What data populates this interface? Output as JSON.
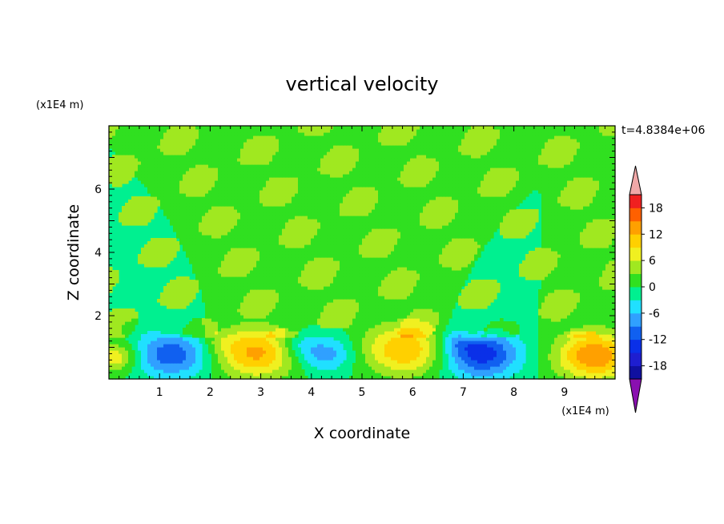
{
  "chart_data": {
    "type": "heatmap",
    "title": "vertical velocity",
    "xlabel": "X coordinate",
    "ylabel": "Z coordinate",
    "x_unit": "(x1E4 m)",
    "y_unit": "(x1E4 m)",
    "time_label": "t=4.8384e+06",
    "xlim": [
      0,
      10
    ],
    "ylim": [
      0,
      8
    ],
    "x_ticks": [
      1,
      2,
      3,
      4,
      5,
      6,
      7,
      8,
      9
    ],
    "y_ticks": [
      2,
      4,
      6
    ],
    "background_color": "#00f090",
    "colorbar": {
      "tick_labels": [
        "18",
        "12",
        "6",
        "0",
        "-6",
        "-12",
        "-18"
      ],
      "tick_values": [
        18,
        12,
        6,
        0,
        -6,
        -12,
        -18
      ],
      "levels": [
        -21,
        -18,
        -15,
        -12,
        -9,
        -6,
        -3,
        0,
        3,
        6,
        9,
        12,
        15,
        18,
        21
      ],
      "colors": [
        "#1010a0",
        "#1e1ed0",
        "#0a30e8",
        "#1060f0",
        "#30a0ff",
        "#20e0ff",
        "#00f090",
        "#30e020",
        "#a0e820",
        "#f0f020",
        "#ffd000",
        "#ffa000",
        "#ff6000",
        "#f02020"
      ],
      "under_color": "#8a10b0",
      "over_color": "#f0a8a8"
    },
    "features": [
      {
        "x": 0.1,
        "z": 0.7,
        "w": 0.45,
        "peak": 9
      },
      {
        "x": 1.25,
        "z": 0.8,
        "w": 0.75,
        "peak": -11
      },
      {
        "x": 1.25,
        "z": 1.55,
        "w": 0.28,
        "peak": 3
      },
      {
        "x": 2.9,
        "z": 0.85,
        "w": 0.8,
        "peak": 13
      },
      {
        "x": 4.25,
        "z": 0.8,
        "w": 0.55,
        "peak": -8
      },
      {
        "x": 5.85,
        "z": 0.95,
        "w": 0.8,
        "peak": 12
      },
      {
        "x": 7.35,
        "z": 0.8,
        "w": 0.75,
        "peak": -14
      },
      {
        "x": 7.2,
        "z": 1.45,
        "w": 0.28,
        "peak": 4
      },
      {
        "x": 9.6,
        "z": 0.75,
        "w": 0.75,
        "peak": 15
      },
      {
        "x": 2.2,
        "z": 1.2,
        "w": 0.35,
        "peak": 2.5
      },
      {
        "x": 3.7,
        "z": 1.1,
        "w": 0.4,
        "peak": -4
      },
      {
        "x": 6.9,
        "z": 1.2,
        "w": 0.35,
        "peak": -4
      }
    ]
  }
}
